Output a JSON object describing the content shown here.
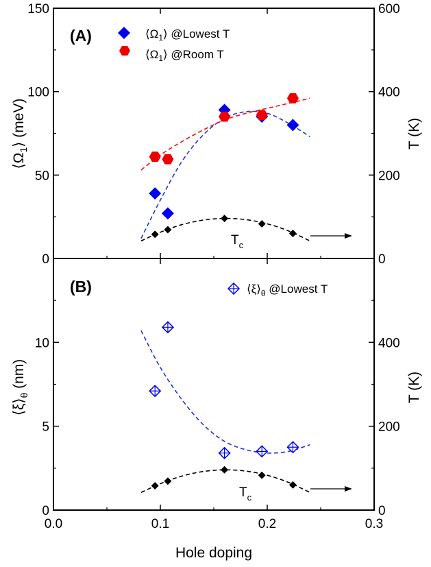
{
  "chart_data": [
    {
      "panel": "A",
      "type": "scatter",
      "panel_label": "(A)",
      "ylabel": "⟨Ω1⟩ (meV)",
      "ylabel_parts": {
        "open": "⟨Ω",
        "sub": "1",
        "close": "⟩ (meV)"
      },
      "y2label": "T (K)",
      "xlim": [
        0.0,
        0.3
      ],
      "ylim": [
        0,
        150
      ],
      "y2lim": [
        0,
        600
      ],
      "y_ticks": [
        "0",
        "50",
        "100",
        "150"
      ],
      "y_tick_values": [
        0,
        50,
        100,
        150
      ],
      "y2_ticks": [
        "0",
        "200",
        "400",
        "600"
      ],
      "y2_tick_values": [
        0,
        200,
        400,
        600
      ],
      "series": [
        {
          "name": "⟨Ω1⟩ @Lowest T",
          "legend_parts": {
            "open": "⟨Ω",
            "sub": "1",
            "close": "⟩ @Lowest T"
          },
          "marker": "diamond",
          "color": "#0000ee",
          "axis": "left",
          "x": [
            0.095,
            0.107,
            0.16,
            0.195,
            0.224
          ],
          "y": [
            39,
            27,
            89,
            85,
            80
          ]
        },
        {
          "name": "⟨Ω1⟩ @Room T",
          "legend_parts": {
            "open": "⟨Ω",
            "sub": "1",
            "close": "⟩ @Room T"
          },
          "marker": "hexagon",
          "color": "#ee0000",
          "axis": "left",
          "x": [
            0.095,
            0.107,
            0.16,
            0.195,
            0.224
          ],
          "y": [
            61,
            59.5,
            85,
            86,
            96
          ]
        },
        {
          "name": "Tc",
          "marker": "small-diamond",
          "color": "#000000",
          "axis": "right",
          "x": [
            0.095,
            0.107,
            0.16,
            0.195,
            0.224
          ],
          "y": [
            58,
            69,
            96,
            83,
            60
          ]
        }
      ],
      "fits": [
        {
          "name": "Lowest T fit",
          "color": "#2233dd",
          "axis": "left",
          "x": [
            0.082,
            0.1,
            0.12,
            0.14,
            0.16,
            0.18,
            0.2,
            0.22,
            0.24
          ],
          "y": [
            12,
            35,
            58,
            74,
            84,
            88,
            87,
            81,
            73
          ]
        },
        {
          "name": "Room T fit",
          "color": "#ee1111",
          "axis": "left",
          "x": [
            0.082,
            0.1,
            0.12,
            0.14,
            0.16,
            0.18,
            0.2,
            0.22,
            0.24
          ],
          "y": [
            53,
            62,
            70,
            77,
            83,
            87,
            90,
            93,
            96
          ]
        },
        {
          "name": "Tc fit",
          "color": "#000000",
          "axis": "right",
          "x": [
            0.082,
            0.1,
            0.12,
            0.14,
            0.16,
            0.18,
            0.2,
            0.22,
            0.24
          ],
          "y": [
            42,
            63,
            81,
            92,
            96,
            93,
            83,
            66,
            42
          ]
        }
      ],
      "annotation": {
        "text_main": "T",
        "text_sub": "c",
        "arrow": "right"
      }
    },
    {
      "panel": "B",
      "type": "scatter",
      "panel_label": "(B)",
      "ylabel": "⟨ξ⟩θ (nm)",
      "ylabel_parts": {
        "open": "⟨ξ⟩",
        "sub": "θ",
        "close": " (nm)"
      },
      "y2label": "T (K)",
      "xlabel": "Hole doping",
      "xlim": [
        0.0,
        0.3
      ],
      "ylim": [
        0,
        15
      ],
      "y2lim": [
        0,
        600
      ],
      "x_ticks": [
        "0.0",
        "0.1",
        "0.2",
        "0.3"
      ],
      "x_tick_values": [
        0.0,
        0.1,
        0.2,
        0.3
      ],
      "y_ticks": [
        "0",
        "5",
        "10"
      ],
      "y_tick_values": [
        0,
        5,
        10
      ],
      "y2_ticks": [
        "0",
        "200",
        "400"
      ],
      "y2_tick_values": [
        0,
        200,
        400
      ],
      "series": [
        {
          "name": "⟨ξ⟩θ @Lowest T",
          "legend_parts": {
            "open": "⟨ξ⟩",
            "sub": "θ",
            "close": " @Lowest T"
          },
          "marker": "crossed-diamond",
          "color": "#0000ee",
          "axis": "left",
          "x": [
            0.095,
            0.107,
            0.16,
            0.195,
            0.224
          ],
          "y": [
            7.1,
            10.9,
            3.4,
            3.5,
            3.75
          ]
        },
        {
          "name": "Tc",
          "marker": "small-diamond",
          "color": "#000000",
          "axis": "right",
          "x": [
            0.095,
            0.107,
            0.16,
            0.195,
            0.224
          ],
          "y": [
            58,
            69,
            96,
            83,
            60
          ]
        }
      ],
      "fits": [
        {
          "name": "ξ fit",
          "color": "#2233dd",
          "axis": "left",
          "x": [
            0.082,
            0.1,
            0.12,
            0.14,
            0.16,
            0.18,
            0.2,
            0.22,
            0.24
          ],
          "y": [
            10.7,
            8.5,
            6.6,
            5.1,
            4.1,
            3.6,
            3.4,
            3.5,
            3.9
          ]
        },
        {
          "name": "Tc fit",
          "color": "#000000",
          "axis": "right",
          "x": [
            0.082,
            0.1,
            0.12,
            0.14,
            0.16,
            0.18,
            0.2,
            0.22,
            0.24
          ],
          "y": [
            42,
            63,
            81,
            92,
            96,
            93,
            83,
            66,
            42
          ]
        }
      ],
      "annotation": {
        "text_main": "T",
        "text_sub": "c",
        "arrow": "right"
      }
    }
  ]
}
